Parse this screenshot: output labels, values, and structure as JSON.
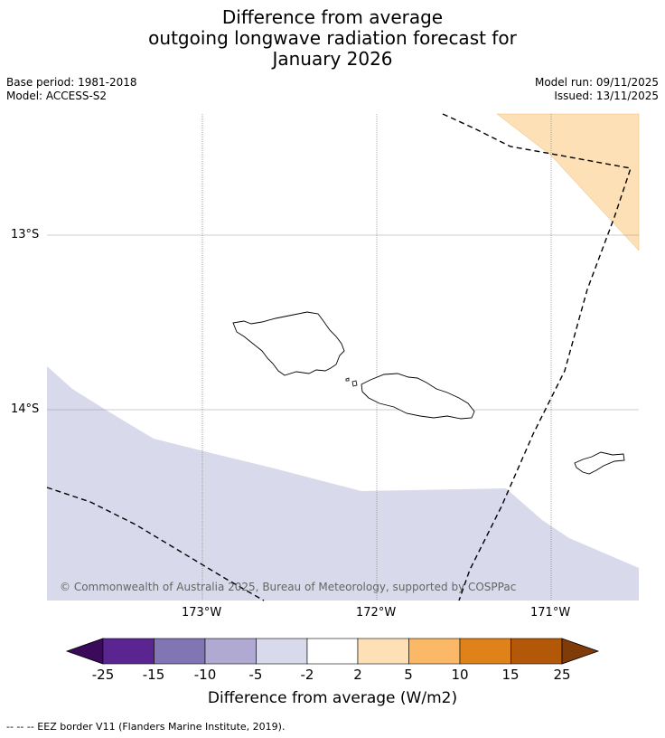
{
  "title": {
    "line1": "Difference from average",
    "line2": "outgoing longwave radiation forecast for",
    "line3": "January 2026"
  },
  "meta": {
    "base_period": "Base period: 1981-2018",
    "model": "Model: ACCESS-S2",
    "model_run": "Model run: 09/11/2025",
    "issued": "Issued: 13/11/2025"
  },
  "map": {
    "lat_labels": [
      "13°S",
      "14°S"
    ],
    "lon_labels": [
      "173°W",
      "172°W",
      "171°W"
    ],
    "copyright": "© Commonwealth of Australia 2025, Bureau of Meteorology, supported by COSPPac",
    "regions": [
      {
        "name": "positive-2-to-5",
        "color": "#fde0b6"
      },
      {
        "name": "negative-2-to-5",
        "color": "#d8d9ea"
      }
    ],
    "islands": [
      "Savai'i",
      "Upolu",
      "Tutuila"
    ]
  },
  "colorbar": {
    "labels": [
      "-25",
      "-15",
      "-10",
      "-5",
      "-2",
      "2",
      "5",
      "10",
      "15",
      "25"
    ],
    "colors": [
      "#3b0a5a",
      "#5b2591",
      "#8275b3",
      "#b0a9d2",
      "#d8d9ea",
      "#ffffff",
      "#fde0b6",
      "#fbb866",
      "#e0821a",
      "#b35808",
      "#7f3b08"
    ],
    "title": "Difference from average (W/m2)"
  },
  "footer": "--  --  -- EEZ border V11 (Flanders Marine Institute, 2019)."
}
